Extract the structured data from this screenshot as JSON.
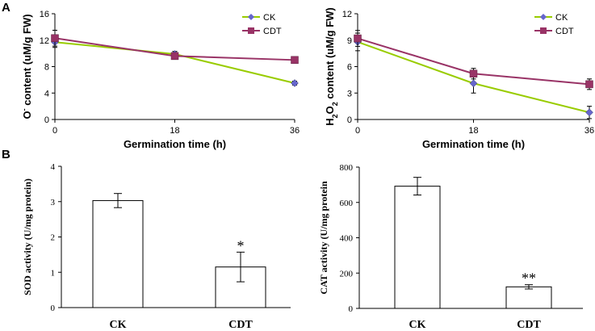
{
  "panel_labels": {
    "a": "A",
    "b": "B"
  },
  "chart_data": [
    {
      "id": "o2",
      "type": "line",
      "ylabel_prefix": "O",
      "ylabel_sup": "-",
      "ylabel_rest": " content (uM/g FW)",
      "xlabel": "Germination time (h)",
      "x": [
        0,
        18,
        36
      ],
      "x_ticks": [
        "0",
        "18",
        "36"
      ],
      "ylim": [
        0,
        16
      ],
      "y_ticks": [
        "0",
        "4",
        "8",
        "12",
        "16"
      ],
      "legend_position": "top-right",
      "series": [
        {
          "name": "CK",
          "color": "#99cc00",
          "marker": "diamond",
          "marker_color": "#6666cc",
          "values": [
            11.7,
            9.9,
            5.5
          ],
          "errors": [
            0.8,
            0.4,
            0.3
          ]
        },
        {
          "name": "CDT",
          "color": "#993366",
          "marker": "square",
          "marker_color": "#993366",
          "values": [
            12.3,
            9.6,
            9.0
          ],
          "errors": [
            1.2,
            0.5,
            0.4
          ]
        }
      ]
    },
    {
      "id": "h2o2",
      "type": "line",
      "ylabel_prefix": "H",
      "ylabel_sub1": "2",
      "ylabel_mid": "O",
      "ylabel_sub2": "2",
      "ylabel_rest": " content (uM/g FW)",
      "xlabel": "Germination time (h)",
      "x": [
        0,
        18,
        36
      ],
      "x_ticks": [
        "0",
        "18",
        "36"
      ],
      "ylim": [
        0,
        12
      ],
      "y_ticks": [
        "0",
        "3",
        "6",
        "9",
        "12"
      ],
      "legend_position": "top-right",
      "series": [
        {
          "name": "CK",
          "color": "#99cc00",
          "marker": "diamond",
          "marker_color": "#6666cc",
          "values": [
            8.8,
            4.1,
            0.8
          ],
          "errors": [
            1.0,
            1.1,
            0.7
          ]
        },
        {
          "name": "CDT",
          "color": "#993366",
          "marker": "square",
          "marker_color": "#993366",
          "values": [
            9.2,
            5.2,
            4.0
          ],
          "errors": [
            0.9,
            0.6,
            0.6
          ]
        }
      ]
    },
    {
      "id": "sod",
      "type": "bar",
      "ylabel": "SOD activity (U/mg protein)",
      "categories": [
        "CK",
        "CDT"
      ],
      "values": [
        3.03,
        1.15
      ],
      "errors": [
        0.2,
        0.42
      ],
      "annotations": [
        "",
        "*"
      ],
      "ylim": [
        0,
        4
      ],
      "y_ticks": [
        "0",
        "1",
        "2",
        "3",
        "4"
      ]
    },
    {
      "id": "cat",
      "type": "bar",
      "ylabel": "CAT activity (U/mg protein",
      "categories": [
        "CK",
        "CDT"
      ],
      "values": [
        692,
        122
      ],
      "errors": [
        50,
        12
      ],
      "annotations": [
        "",
        "**"
      ],
      "ylim": [
        0,
        800
      ],
      "y_ticks": [
        "0",
        "200",
        "400",
        "600",
        "800"
      ]
    }
  ]
}
